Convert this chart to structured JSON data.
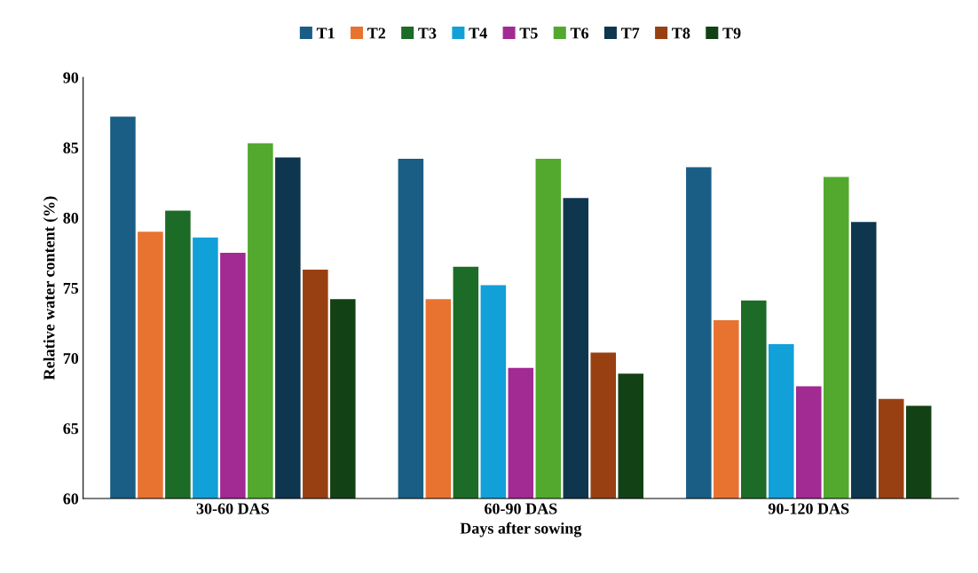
{
  "chart_data": {
    "type": "bar",
    "xlabel": "Days after sowing",
    "ylabel": "Relative water content (%)",
    "categories": [
      "30-60 DAS",
      "60-90 DAS",
      "90-120 DAS"
    ],
    "series": [
      {
        "name": "T1",
        "color": "#1a5e85",
        "values": [
          87.2,
          84.2,
          83.6
        ]
      },
      {
        "name": "T2",
        "color": "#e87331",
        "values": [
          79.0,
          74.2,
          72.7
        ]
      },
      {
        "name": "T3",
        "color": "#1c6b26",
        "values": [
          80.5,
          76.5,
          74.1
        ]
      },
      {
        "name": "T4",
        "color": "#12a0d8",
        "values": [
          78.6,
          75.2,
          71.0
        ]
      },
      {
        "name": "T5",
        "color": "#a22a93",
        "values": [
          77.5,
          69.3,
          68.0
        ]
      },
      {
        "name": "T6",
        "color": "#52a92e",
        "values": [
          85.3,
          84.2,
          82.9
        ]
      },
      {
        "name": "T7",
        "color": "#0e374f",
        "values": [
          84.3,
          81.4,
          79.7
        ]
      },
      {
        "name": "T8",
        "color": "#994012",
        "values": [
          76.3,
          70.4,
          67.1
        ]
      },
      {
        "name": "T9",
        "color": "#134116",
        "values": [
          74.2,
          68.9,
          66.6
        ]
      }
    ],
    "ylim": [
      60,
      90
    ],
    "yticks": [
      60,
      65,
      70,
      75,
      80,
      85,
      90
    ],
    "grid": false,
    "legend": "top"
  }
}
